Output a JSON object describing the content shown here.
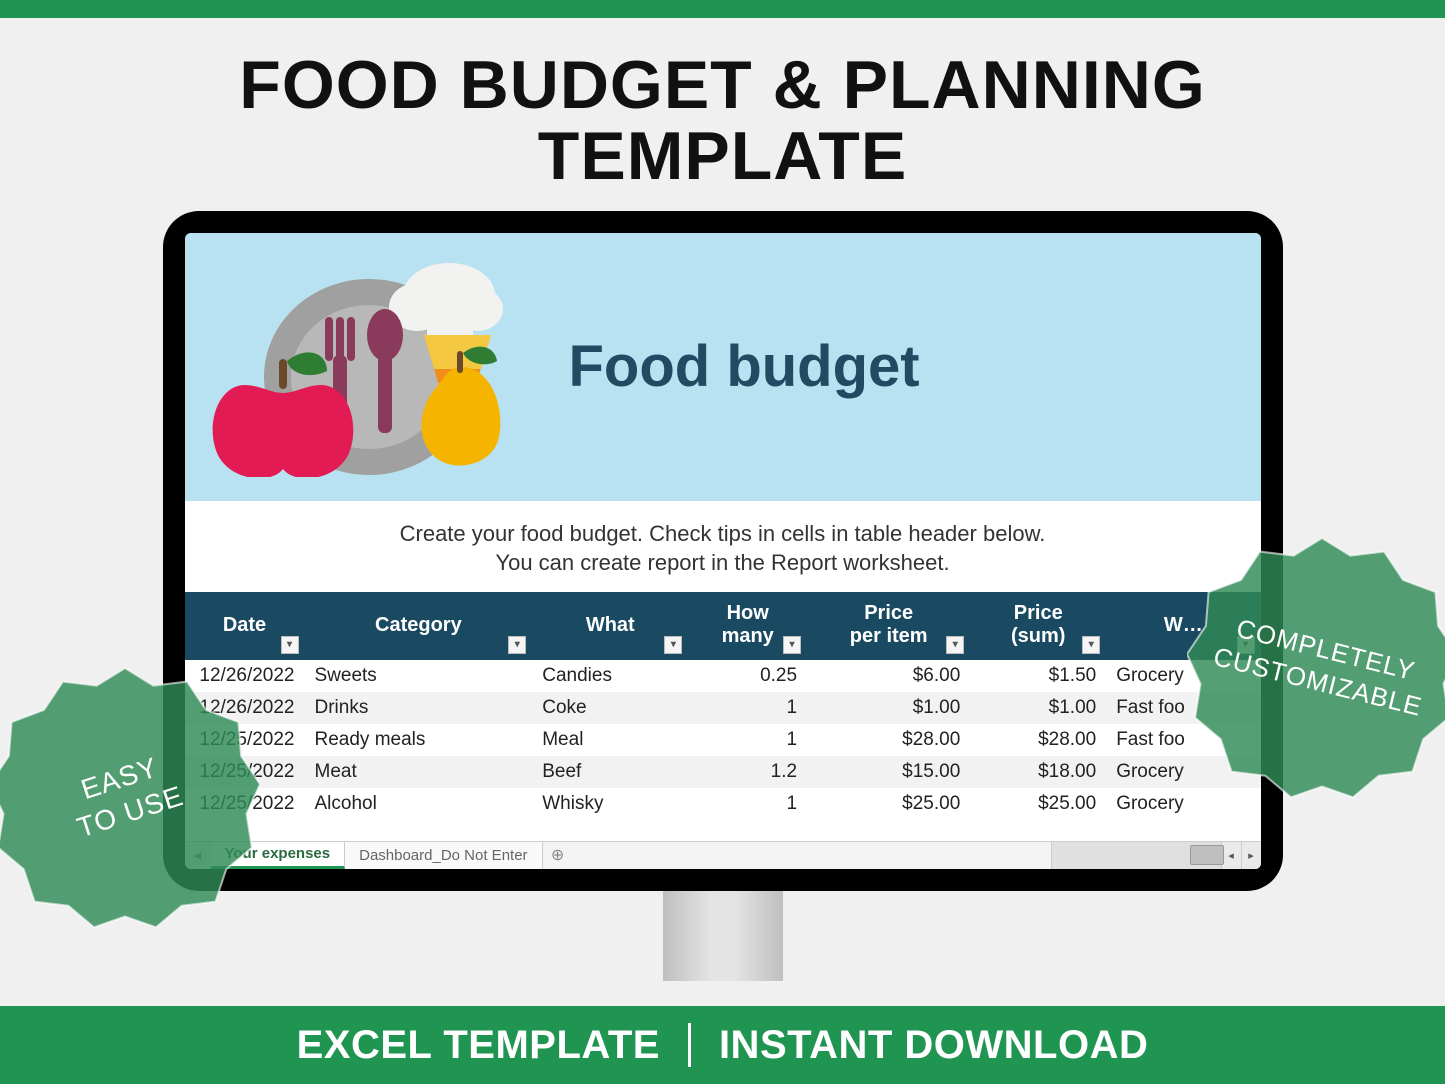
{
  "colors": {
    "brand_green": "#1f9551",
    "background": "#f0f0f0",
    "banner_bg": "#b8e2f2",
    "table_header_bg": "#1a4a62",
    "banner_title_color": "#214a63",
    "plate_color": "#a0a0a0",
    "apple_color": "#e31b54",
    "pear_color": "#f5b400",
    "leaf_color": "#2e7d32",
    "utensil_color": "#8a3b5c",
    "hat_color": "#f2f2f0",
    "cone_orange": "#f28c1c",
    "cone_yellow": "#f5c842"
  },
  "hero": {
    "title": "FOOD BUDGET & PLANNING\nTEMPLATE"
  },
  "spreadsheet": {
    "banner_title": "Food budget",
    "instruction_line1": "Create your food budget. Check tips in cells in table header below.",
    "instruction_line2": "You can create report in the Report worksheet.",
    "columns": [
      {
        "label": "Date",
        "key": "date",
        "class": "col-date"
      },
      {
        "label": "Category",
        "key": "cat",
        "class": "col-cat"
      },
      {
        "label": "What",
        "key": "what",
        "class": "col-what"
      },
      {
        "label": "How\nmany",
        "key": "many",
        "class": "col-many"
      },
      {
        "label": "Price\nper item",
        "key": "ppi",
        "class": "col-ppi"
      },
      {
        "label": "Price\n(sum)",
        "key": "sum",
        "class": "col-sum"
      },
      {
        "label": "W…",
        "key": "where",
        "class": "col-where"
      }
    ],
    "rows": [
      {
        "date": "12/26/2022",
        "cat": "Sweets",
        "what": "Candies",
        "many": "0.25",
        "ppi": "$6.00",
        "sum": "$1.50",
        "where": "Grocery"
      },
      {
        "date": "12/26/2022",
        "cat": "Drinks",
        "what": "Coke",
        "many": "1",
        "ppi": "$1.00",
        "sum": "$1.00",
        "where": "Fast foo"
      },
      {
        "date": "12/25/2022",
        "cat": "Ready meals",
        "what": "Meal",
        "many": "1",
        "ppi": "$28.00",
        "sum": "$28.00",
        "where": "Fast foo"
      },
      {
        "date": "12/25/2022",
        "cat": "Meat",
        "what": "Beef",
        "many": "1.2",
        "ppi": "$15.00",
        "sum": "$18.00",
        "where": "Grocery"
      },
      {
        "date": "12/25/2022",
        "cat": "Alcohol",
        "what": "Whisky",
        "many": "1",
        "ppi": "$25.00",
        "sum": "$25.00",
        "where": "Grocery"
      }
    ],
    "tabs": {
      "active": "Your expenses",
      "inactive": "Dashboard_Do Not Enter",
      "add_symbol": "⊕"
    }
  },
  "badges": {
    "left": "EASY\nTO USE",
    "right": "COMPLETELY\nCUSTOMIZABLE",
    "fill": "#2f8a57",
    "opacity": 0.82
  },
  "footer": {
    "left": "EXCEL TEMPLATE",
    "right": "INSTANT DOWNLOAD"
  }
}
